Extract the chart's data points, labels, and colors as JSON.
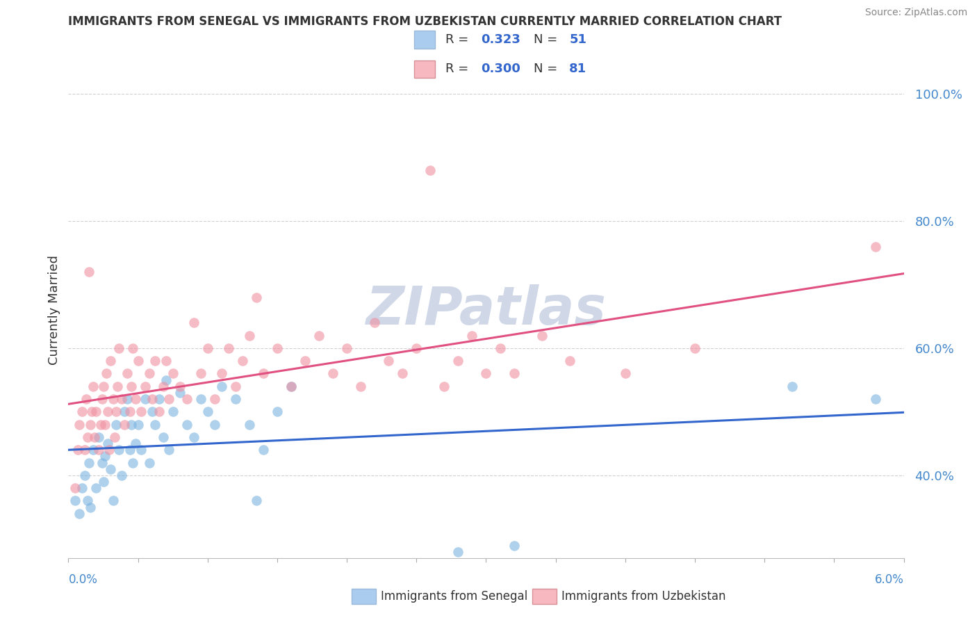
{
  "title": "IMMIGRANTS FROM SENEGAL VS IMMIGRANTS FROM UZBEKISTAN CURRENTLY MARRIED CORRELATION CHART",
  "source": "Source: ZipAtlas.com",
  "ylabel": "Currently Married",
  "xlim": [
    0.0,
    6.0
  ],
  "ylim": [
    27,
    105
  ],
  "ytick_vals": [
    40,
    60,
    80,
    100
  ],
  "ytick_labels": [
    "40.0%",
    "60.0%",
    "80.0%",
    "100.0%"
  ],
  "senegal_color": "#7ab3e0",
  "uzbekistan_color": "#f090a0",
  "senegal_line_color": "#3366cc",
  "uzbekistan_line_color": "#e05080",
  "background_color": "#ffffff",
  "watermark": "ZIPatlas",
  "watermark_color": "#d0d8e8",
  "grid_color": "#d0d0d0",
  "legend_box_sen": "#aaccee",
  "legend_box_uzb": "#f8b8c0",
  "legend_r_color": "#3366cc",
  "legend_n_color": "#3366cc",
  "title_color": "#333333",
  "ylabel_color": "#333333",
  "ytick_color": "#4488cc",
  "source_color": "#888888",
  "xlabel_color": "#4488cc",
  "senegal_scatter": [
    [
      0.05,
      36
    ],
    [
      0.08,
      34
    ],
    [
      0.1,
      38
    ],
    [
      0.12,
      40
    ],
    [
      0.14,
      36
    ],
    [
      0.15,
      42
    ],
    [
      0.16,
      35
    ],
    [
      0.18,
      44
    ],
    [
      0.2,
      38
    ],
    [
      0.22,
      46
    ],
    [
      0.24,
      42
    ],
    [
      0.25,
      39
    ],
    [
      0.26,
      43
    ],
    [
      0.28,
      45
    ],
    [
      0.3,
      41
    ],
    [
      0.32,
      36
    ],
    [
      0.34,
      48
    ],
    [
      0.36,
      44
    ],
    [
      0.38,
      40
    ],
    [
      0.4,
      50
    ],
    [
      0.42,
      52
    ],
    [
      0.44,
      44
    ],
    [
      0.45,
      48
    ],
    [
      0.46,
      42
    ],
    [
      0.48,
      45
    ],
    [
      0.5,
      48
    ],
    [
      0.52,
      44
    ],
    [
      0.55,
      52
    ],
    [
      0.58,
      42
    ],
    [
      0.6,
      50
    ],
    [
      0.62,
      48
    ],
    [
      0.65,
      52
    ],
    [
      0.68,
      46
    ],
    [
      0.7,
      55
    ],
    [
      0.72,
      44
    ],
    [
      0.75,
      50
    ],
    [
      0.8,
      53
    ],
    [
      0.85,
      48
    ],
    [
      0.9,
      46
    ],
    [
      0.95,
      52
    ],
    [
      1.0,
      50
    ],
    [
      1.05,
      48
    ],
    [
      1.1,
      54
    ],
    [
      1.2,
      52
    ],
    [
      1.3,
      48
    ],
    [
      1.35,
      36
    ],
    [
      1.4,
      44
    ],
    [
      1.5,
      50
    ],
    [
      1.6,
      54
    ],
    [
      2.8,
      28
    ],
    [
      3.2,
      29
    ],
    [
      5.2,
      54
    ],
    [
      5.8,
      52
    ]
  ],
  "uzbekistan_scatter": [
    [
      0.05,
      38
    ],
    [
      0.07,
      44
    ],
    [
      0.08,
      48
    ],
    [
      0.1,
      50
    ],
    [
      0.12,
      44
    ],
    [
      0.13,
      52
    ],
    [
      0.14,
      46
    ],
    [
      0.15,
      72
    ],
    [
      0.16,
      48
    ],
    [
      0.17,
      50
    ],
    [
      0.18,
      54
    ],
    [
      0.19,
      46
    ],
    [
      0.2,
      50
    ],
    [
      0.22,
      44
    ],
    [
      0.23,
      48
    ],
    [
      0.24,
      52
    ],
    [
      0.25,
      54
    ],
    [
      0.26,
      48
    ],
    [
      0.27,
      56
    ],
    [
      0.28,
      50
    ],
    [
      0.29,
      44
    ],
    [
      0.3,
      58
    ],
    [
      0.32,
      52
    ],
    [
      0.33,
      46
    ],
    [
      0.34,
      50
    ],
    [
      0.35,
      54
    ],
    [
      0.36,
      60
    ],
    [
      0.38,
      52
    ],
    [
      0.4,
      48
    ],
    [
      0.42,
      56
    ],
    [
      0.44,
      50
    ],
    [
      0.45,
      54
    ],
    [
      0.46,
      60
    ],
    [
      0.48,
      52
    ],
    [
      0.5,
      58
    ],
    [
      0.52,
      50
    ],
    [
      0.55,
      54
    ],
    [
      0.58,
      56
    ],
    [
      0.6,
      52
    ],
    [
      0.62,
      58
    ],
    [
      0.65,
      50
    ],
    [
      0.68,
      54
    ],
    [
      0.7,
      58
    ],
    [
      0.72,
      52
    ],
    [
      0.75,
      56
    ],
    [
      0.8,
      54
    ],
    [
      0.85,
      52
    ],
    [
      0.9,
      64
    ],
    [
      0.95,
      56
    ],
    [
      1.0,
      60
    ],
    [
      1.05,
      52
    ],
    [
      1.1,
      56
    ],
    [
      1.15,
      60
    ],
    [
      1.2,
      54
    ],
    [
      1.25,
      58
    ],
    [
      1.3,
      62
    ],
    [
      1.35,
      68
    ],
    [
      1.4,
      56
    ],
    [
      1.5,
      60
    ],
    [
      1.6,
      54
    ],
    [
      1.7,
      58
    ],
    [
      1.8,
      62
    ],
    [
      1.9,
      56
    ],
    [
      2.0,
      60
    ],
    [
      2.1,
      54
    ],
    [
      2.2,
      64
    ],
    [
      2.3,
      58
    ],
    [
      2.4,
      56
    ],
    [
      2.5,
      60
    ],
    [
      2.6,
      88
    ],
    [
      2.7,
      54
    ],
    [
      2.8,
      58
    ],
    [
      2.9,
      62
    ],
    [
      3.0,
      56
    ],
    [
      3.1,
      60
    ],
    [
      3.2,
      56
    ],
    [
      3.4,
      62
    ],
    [
      3.6,
      58
    ],
    [
      4.0,
      56
    ],
    [
      4.5,
      60
    ],
    [
      5.8,
      76
    ]
  ]
}
